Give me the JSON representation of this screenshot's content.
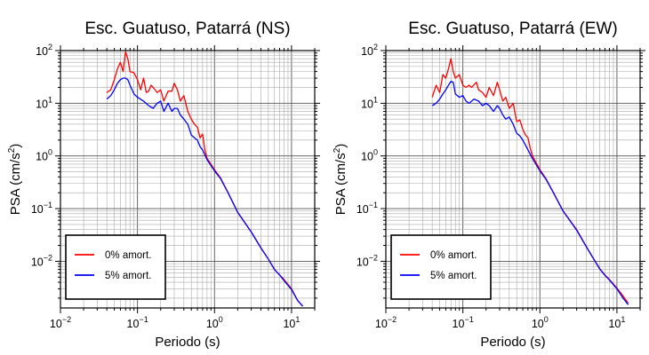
{
  "chart_data": [
    {
      "type": "line",
      "title": "Esc. Guatuso, Patarrá (NS)",
      "xlabel": "Periodo (s)",
      "ylabel": "PSA (cm/s²)",
      "x_scale": "log",
      "y_scale": "log",
      "xlim": [
        0.01,
        20
      ],
      "ylim": [
        0.0013,
        100
      ],
      "grid": true,
      "legend_position": "lower-left",
      "x_tick_labels": [
        {
          "base": "10",
          "exp": "−2"
        },
        {
          "base": "10",
          "exp": "−1"
        },
        {
          "base": "10",
          "exp": "0"
        },
        {
          "base": "10",
          "exp": "1"
        }
      ],
      "y_tick_labels": [
        {
          "base": "10",
          "exp": "2"
        },
        {
          "base": "10",
          "exp": "1"
        },
        {
          "base": "10",
          "exp": "0"
        },
        {
          "base": "10",
          "exp": "−1"
        },
        {
          "base": "10",
          "exp": "−2"
        }
      ],
      "series": [
        {
          "name": "0% amort.",
          "color": "#ff0000",
          "points": [
            [
              0.04,
              16
            ],
            [
              0.045,
              18
            ],
            [
              0.05,
              28
            ],
            [
              0.055,
              45
            ],
            [
              0.06,
              60
            ],
            [
              0.065,
              40
            ],
            [
              0.07,
              95
            ],
            [
              0.075,
              70
            ],
            [
              0.08,
              40
            ],
            [
              0.09,
              38
            ],
            [
              0.1,
              28
            ],
            [
              0.11,
              18
            ],
            [
              0.12,
              30
            ],
            [
              0.13,
              16
            ],
            [
              0.14,
              17
            ],
            [
              0.15,
              22
            ],
            [
              0.16,
              20
            ],
            [
              0.18,
              16
            ],
            [
              0.2,
              18
            ],
            [
              0.22,
              11
            ],
            [
              0.25,
              17
            ],
            [
              0.28,
              17
            ],
            [
              0.3,
              24
            ],
            [
              0.33,
              18
            ],
            [
              0.36,
              11
            ],
            [
              0.4,
              14
            ],
            [
              0.45,
              7
            ],
            [
              0.5,
              5
            ],
            [
              0.55,
              4
            ],
            [
              0.6,
              3.5
            ],
            [
              0.65,
              2.2
            ],
            [
              0.7,
              2.6
            ],
            [
              0.75,
              1.3
            ],
            [
              0.8,
              0.9
            ],
            [
              1,
              0.55
            ],
            [
              1.2,
              0.38
            ],
            [
              1.5,
              0.2
            ],
            [
              2,
              0.085
            ],
            [
              3,
              0.036
            ],
            [
              4,
              0.018
            ],
            [
              5,
              0.011
            ],
            [
              6,
              0.007
            ],
            [
              7,
              0.0055
            ],
            [
              8,
              0.0045
            ],
            [
              10,
              0.003
            ],
            [
              12,
              0.0018
            ],
            [
              14,
              0.0014
            ]
          ]
        },
        {
          "name": "5% amort.",
          "color": "#0000ff",
          "points": [
            [
              0.04,
              12
            ],
            [
              0.045,
              14
            ],
            [
              0.05,
              18
            ],
            [
              0.055,
              24
            ],
            [
              0.06,
              28
            ],
            [
              0.065,
              30
            ],
            [
              0.07,
              30
            ],
            [
              0.075,
              28
            ],
            [
              0.08,
              22
            ],
            [
              0.09,
              15
            ],
            [
              0.1,
              13
            ],
            [
              0.12,
              11
            ],
            [
              0.14,
              9
            ],
            [
              0.16,
              8
            ],
            [
              0.18,
              10
            ],
            [
              0.2,
              11
            ],
            [
              0.22,
              7
            ],
            [
              0.25,
              10
            ],
            [
              0.28,
              7
            ],
            [
              0.3,
              8
            ],
            [
              0.33,
              8
            ],
            [
              0.36,
              6
            ],
            [
              0.4,
              5
            ],
            [
              0.45,
              4
            ],
            [
              0.5,
              2.5
            ],
            [
              0.55,
              2.2
            ],
            [
              0.6,
              2
            ],
            [
              0.65,
              1.5
            ],
            [
              0.7,
              1.3
            ],
            [
              0.8,
              0.85
            ],
            [
              1,
              0.52
            ],
            [
              1.2,
              0.37
            ],
            [
              1.5,
              0.2
            ],
            [
              2,
              0.085
            ],
            [
              3,
              0.036
            ],
            [
              4,
              0.018
            ],
            [
              5,
              0.011
            ],
            [
              6,
              0.007
            ],
            [
              7,
              0.0055
            ],
            [
              8,
              0.0043
            ],
            [
              10,
              0.0029
            ],
            [
              12,
              0.0018
            ],
            [
              14,
              0.0014
            ]
          ]
        }
      ]
    },
    {
      "type": "line",
      "title": "Esc. Guatuso, Patarrá (EW)",
      "xlabel": "Periodo (s)",
      "ylabel": "PSA (cm/s²)",
      "x_scale": "log",
      "y_scale": "log",
      "xlim": [
        0.01,
        20
      ],
      "ylim": [
        0.0013,
        100
      ],
      "grid": true,
      "legend_position": "lower-left",
      "x_tick_labels": [
        {
          "base": "10",
          "exp": "−2"
        },
        {
          "base": "10",
          "exp": "−1"
        },
        {
          "base": "10",
          "exp": "0"
        },
        {
          "base": "10",
          "exp": "1"
        }
      ],
      "y_tick_labels": [
        {
          "base": "10",
          "exp": "2"
        },
        {
          "base": "10",
          "exp": "1"
        },
        {
          "base": "10",
          "exp": "0"
        },
        {
          "base": "10",
          "exp": "−1"
        },
        {
          "base": "10",
          "exp": "−2"
        }
      ],
      "series": [
        {
          "name": "0% amort.",
          "color": "#ff0000",
          "points": [
            [
              0.04,
              13
            ],
            [
              0.045,
              22
            ],
            [
              0.05,
              16
            ],
            [
              0.055,
              35
            ],
            [
              0.06,
              30
            ],
            [
              0.065,
              45
            ],
            [
              0.07,
              70
            ],
            [
              0.075,
              40
            ],
            [
              0.08,
              30
            ],
            [
              0.09,
              35
            ],
            [
              0.1,
              22
            ],
            [
              0.11,
              20
            ],
            [
              0.12,
              22
            ],
            [
              0.13,
              20
            ],
            [
              0.15,
              25
            ],
            [
              0.16,
              18
            ],
            [
              0.18,
              16
            ],
            [
              0.2,
              13
            ],
            [
              0.22,
              20
            ],
            [
              0.25,
              14
            ],
            [
              0.28,
              25
            ],
            [
              0.3,
              18
            ],
            [
              0.33,
              11
            ],
            [
              0.36,
              13
            ],
            [
              0.4,
              8
            ],
            [
              0.45,
              10
            ],
            [
              0.5,
              4.5
            ],
            [
              0.55,
              4.8
            ],
            [
              0.6,
              3.2
            ],
            [
              0.65,
              2.5
            ],
            [
              0.7,
              2.2
            ],
            [
              0.75,
              1.4
            ],
            [
              0.8,
              1
            ],
            [
              1,
              0.55
            ],
            [
              1.2,
              0.37
            ],
            [
              1.5,
              0.2
            ],
            [
              2,
              0.09
            ],
            [
              3,
              0.04
            ],
            [
              4,
              0.019
            ],
            [
              5,
              0.011
            ],
            [
              6,
              0.0072
            ],
            [
              7,
              0.0055
            ],
            [
              8,
              0.0045
            ],
            [
              10,
              0.0031
            ],
            [
              12,
              0.0022
            ],
            [
              14,
              0.0016
            ]
          ]
        },
        {
          "name": "5% amort.",
          "color": "#0000ff",
          "points": [
            [
              0.04,
              9
            ],
            [
              0.045,
              10
            ],
            [
              0.05,
              12
            ],
            [
              0.055,
              15
            ],
            [
              0.06,
              18
            ],
            [
              0.065,
              22
            ],
            [
              0.07,
              26
            ],
            [
              0.075,
              25
            ],
            [
              0.08,
              15
            ],
            [
              0.09,
              13
            ],
            [
              0.1,
              14
            ],
            [
              0.11,
              11
            ],
            [
              0.12,
              10
            ],
            [
              0.14,
              12
            ],
            [
              0.16,
              11
            ],
            [
              0.18,
              9
            ],
            [
              0.2,
              10
            ],
            [
              0.22,
              9
            ],
            [
              0.25,
              7
            ],
            [
              0.28,
              9
            ],
            [
              0.3,
              8
            ],
            [
              0.33,
              6
            ],
            [
              0.36,
              5
            ],
            [
              0.4,
              5.5
            ],
            [
              0.45,
              4
            ],
            [
              0.5,
              2.7
            ],
            [
              0.55,
              2.4
            ],
            [
              0.6,
              2
            ],
            [
              0.65,
              1.6
            ],
            [
              0.7,
              1.3
            ],
            [
              0.8,
              0.9
            ],
            [
              1,
              0.52
            ],
            [
              1.2,
              0.36
            ],
            [
              1.5,
              0.2
            ],
            [
              2,
              0.09
            ],
            [
              3,
              0.039
            ],
            [
              4,
              0.019
            ],
            [
              5,
              0.011
            ],
            [
              6,
              0.0071
            ],
            [
              7,
              0.0054
            ],
            [
              8,
              0.0044
            ],
            [
              10,
              0.003
            ],
            [
              12,
              0.002
            ],
            [
              14,
              0.0015
            ]
          ]
        }
      ]
    }
  ]
}
